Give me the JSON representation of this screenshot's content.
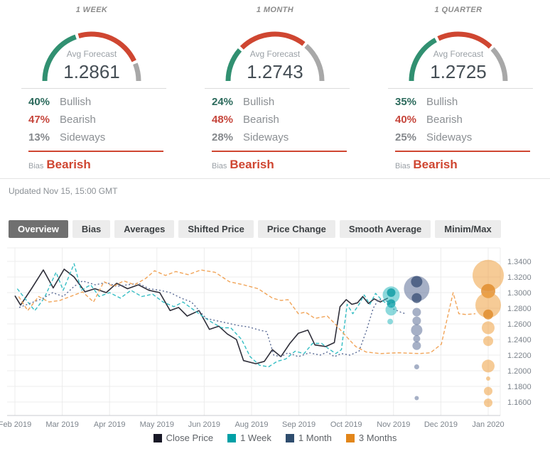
{
  "colors": {
    "bullish": "#319071",
    "bearish": "#cf4631",
    "sideways": "#a8a8a8",
    "grid": "#ececec",
    "axis": "#c8cbd0",
    "axis_text": "#7d848c"
  },
  "panels": [
    {
      "title": "1 WEEK",
      "avg_forecast_label": "Avg Forecast",
      "avg_forecast_value": "1.2861",
      "gauge": {
        "bullish": 40,
        "bearish": 47,
        "sideways": 13
      },
      "rows": [
        {
          "value": "40%",
          "label": "Bullish"
        },
        {
          "value": "47%",
          "label": "Bearish"
        },
        {
          "value": "13%",
          "label": "Sideways"
        }
      ],
      "bias_label": "Bias",
      "bias_value": "Bearish"
    },
    {
      "title": "1 MONTH",
      "avg_forecast_label": "Avg Forecast",
      "avg_forecast_value": "1.2743",
      "gauge": {
        "bullish": 24,
        "bearish": 48,
        "sideways": 28
      },
      "rows": [
        {
          "value": "24%",
          "label": "Bullish"
        },
        {
          "value": "48%",
          "label": "Bearish"
        },
        {
          "value": "28%",
          "label": "Sideways"
        }
      ],
      "bias_label": "Bias",
      "bias_value": "Bearish"
    },
    {
      "title": "1 QUARTER",
      "avg_forecast_label": "Avg Forecast",
      "avg_forecast_value": "1.2725",
      "gauge": {
        "bullish": 35,
        "bearish": 40,
        "sideways": 25
      },
      "rows": [
        {
          "value": "35%",
          "label": "Bullish"
        },
        {
          "value": "40%",
          "label": "Bearish"
        },
        {
          "value": "25%",
          "label": "Sideways"
        }
      ],
      "bias_label": "Bias",
      "bias_value": "Bearish"
    }
  ],
  "updated": "Updated Nov 15, 15:00 GMT",
  "tabs": [
    {
      "label": "Overview",
      "active": true
    },
    {
      "label": "Bias",
      "active": false
    },
    {
      "label": "Averages",
      "active": false
    },
    {
      "label": "Shifted Price",
      "active": false
    },
    {
      "label": "Price Change",
      "active": false
    },
    {
      "label": "Smooth Average",
      "active": false
    },
    {
      "label": "Minim/Max",
      "active": false
    }
  ],
  "chart_data": {
    "type": "line",
    "x_axis": {
      "labels": [
        "Feb 2019",
        "Mar 2019",
        "Apr 2019",
        "May 2019",
        "Jun 2019",
        "Aug 2019",
        "Sep 2019",
        "Oct 2019",
        "Nov 2019",
        "Dec 2019",
        "Jan 2020"
      ]
    },
    "y_axis": {
      "labels": [
        "1.3400",
        "1.3200",
        "1.3000",
        "1.2800",
        "1.2600",
        "1.2400",
        "1.2200",
        "1.2000",
        "1.1800",
        "1.1600"
      ],
      "min": 1.16,
      "max": 1.34,
      "step": 0.02
    },
    "grid": true,
    "legend_position": "bottom",
    "series": [
      {
        "name": "Close Price",
        "color": "#2f2f3a",
        "dash": "",
        "width": 1.6,
        "bubble_light": "#2f2f3a",
        "bubble_dark": "#2f2f3a",
        "points": [
          [
            0,
            1.296
          ],
          [
            0.12,
            1.284
          ],
          [
            0.35,
            1.305
          ],
          [
            0.6,
            1.329
          ],
          [
            0.81,
            1.306
          ],
          [
            1.04,
            1.33
          ],
          [
            1.25,
            1.32
          ],
          [
            1.48,
            1.301
          ],
          [
            1.69,
            1.305
          ],
          [
            1.93,
            1.3
          ],
          [
            2.15,
            1.312
          ],
          [
            2.38,
            1.305
          ],
          [
            2.61,
            1.31
          ],
          [
            2.83,
            1.303
          ],
          [
            3.06,
            1.3
          ],
          [
            3.28,
            1.277
          ],
          [
            3.46,
            1.281
          ],
          [
            3.64,
            1.27
          ],
          [
            3.89,
            1.277
          ],
          [
            4.11,
            1.253
          ],
          [
            4.31,
            1.257
          ],
          [
            4.49,
            1.247
          ],
          [
            4.68,
            1.24
          ],
          [
            4.83,
            1.213
          ],
          [
            5.09,
            1.209
          ],
          [
            5.27,
            1.212
          ],
          [
            5.44,
            1.227
          ],
          [
            5.62,
            1.218
          ],
          [
            5.81,
            1.235
          ],
          [
            5.99,
            1.248
          ],
          [
            6.19,
            1.252
          ],
          [
            6.34,
            1.233
          ],
          [
            6.57,
            1.231
          ],
          [
            6.75,
            1.236
          ],
          [
            6.87,
            1.282
          ],
          [
            7,
            1.291
          ],
          [
            7.12,
            1.285
          ],
          [
            7.24,
            1.287
          ],
          [
            7.35,
            1.295
          ],
          [
            7.47,
            1.286
          ],
          [
            7.59,
            1.292
          ],
          [
            7.72,
            1.288
          ],
          [
            7.88,
            1.293
          ]
        ]
      },
      {
        "name": "1 Week",
        "color": "#35bec4",
        "dash": "5 3",
        "width": 1.4,
        "bubble_light": "#2fb9bf",
        "bubble_dark": "#0d9aa2",
        "points": [
          [
            0.05,
            1.305
          ],
          [
            0.27,
            1.288
          ],
          [
            0.42,
            1.277
          ],
          [
            0.62,
            1.293
          ],
          [
            0.87,
            1.326
          ],
          [
            1.02,
            1.303
          ],
          [
            1.25,
            1.337
          ],
          [
            1.4,
            1.303
          ],
          [
            1.6,
            1.31
          ],
          [
            1.78,
            1.295
          ],
          [
            2,
            1.3
          ],
          [
            2.23,
            1.293
          ],
          [
            2.45,
            1.303
          ],
          [
            2.68,
            1.295
          ],
          [
            2.91,
            1.298
          ],
          [
            3.13,
            1.288
          ],
          [
            3.36,
            1.282
          ],
          [
            3.55,
            1.288
          ],
          [
            3.73,
            1.28
          ],
          [
            3.96,
            1.27
          ],
          [
            4.16,
            1.262
          ],
          [
            4.37,
            1.255
          ],
          [
            4.56,
            1.255
          ],
          [
            4.79,
            1.24
          ],
          [
            4.97,
            1.218
          ],
          [
            5.17,
            1.207
          ],
          [
            5.36,
            1.205
          ],
          [
            5.54,
            1.212
          ],
          [
            5.72,
            1.215
          ],
          [
            5.92,
            1.225
          ],
          [
            6.11,
            1.222
          ],
          [
            6.29,
            1.235
          ],
          [
            6.48,
            1.235
          ],
          [
            6.63,
            1.228
          ],
          [
            6.78,
            1.222
          ],
          [
            6.9,
            1.227
          ],
          [
            7.02,
            1.285
          ],
          [
            7.14,
            1.273
          ],
          [
            7.27,
            1.285
          ],
          [
            7.38,
            1.297
          ],
          [
            7.5,
            1.285
          ],
          [
            7.62,
            1.299
          ],
          [
            7.76,
            1.29
          ],
          [
            7.88,
            1.285
          ],
          [
            8,
            1.288
          ]
        ]
      },
      {
        "name": "1 Month",
        "color": "#5a6b95",
        "dash": "2 3",
        "width": 1.4,
        "bubble_light": "#5d7097",
        "bubble_dark": "#3d5278",
        "points": [
          [
            0.09,
            1.281
          ],
          [
            0.35,
            1.287
          ],
          [
            0.57,
            1.292
          ],
          [
            0.8,
            1.3
          ],
          [
            1.02,
            1.295
          ],
          [
            1.25,
            1.308
          ],
          [
            1.43,
            1.315
          ],
          [
            1.7,
            1.31
          ],
          [
            1.93,
            1.313
          ],
          [
            2.15,
            1.308
          ],
          [
            2.38,
            1.31
          ],
          [
            2.61,
            1.312
          ],
          [
            2.83,
            1.305
          ],
          [
            3.06,
            1.303
          ],
          [
            3.28,
            1.3
          ],
          [
            3.51,
            1.293
          ],
          [
            3.73,
            1.288
          ],
          [
            4.04,
            1.267
          ],
          [
            4.26,
            1.264
          ],
          [
            4.49,
            1.261
          ],
          [
            4.71,
            1.258
          ],
          [
            4.94,
            1.256
          ],
          [
            5.17,
            1.252
          ],
          [
            5.32,
            1.25
          ],
          [
            5.47,
            1.22
          ],
          [
            5.62,
            1.218
          ],
          [
            5.77,
            1.223
          ],
          [
            5.99,
            1.218
          ],
          [
            6.22,
            1.223
          ],
          [
            6.45,
            1.22
          ],
          [
            6.6,
            1.224
          ],
          [
            6.75,
            1.218
          ],
          [
            6.9,
            1.222
          ],
          [
            7.08,
            1.22
          ],
          [
            7.27,
            1.225
          ],
          [
            7.42,
            1.25
          ],
          [
            7.57,
            1.28
          ],
          [
            7.68,
            1.291
          ],
          [
            7.85,
            1.29
          ],
          [
            8,
            1.279
          ],
          [
            8.15,
            1.275
          ],
          [
            8.25,
            1.273
          ]
        ]
      },
      {
        "name": "3 Months",
        "color": "#f1a458",
        "dash": "5 3",
        "width": 1.4,
        "bubble_light": "#efa03f",
        "bubble_dark": "#e08a28",
        "points": [
          [
            0.08,
            1.295
          ],
          [
            0.27,
            1.277
          ],
          [
            0.5,
            1.295
          ],
          [
            0.72,
            1.288
          ],
          [
            0.95,
            1.29
          ],
          [
            1.17,
            1.295
          ],
          [
            1.43,
            1.301
          ],
          [
            1.66,
            1.288
          ],
          [
            1.88,
            1.314
          ],
          [
            2.08,
            1.308
          ],
          [
            2.3,
            1.315
          ],
          [
            2.53,
            1.31
          ],
          [
            2.76,
            1.318
          ],
          [
            2.95,
            1.328
          ],
          [
            3.18,
            1.322
          ],
          [
            3.4,
            1.327
          ],
          [
            3.66,
            1.323
          ],
          [
            3.93,
            1.329
          ],
          [
            4.23,
            1.326
          ],
          [
            4.53,
            1.314
          ],
          [
            4.83,
            1.31
          ],
          [
            5.14,
            1.305
          ],
          [
            5.44,
            1.293
          ],
          [
            5.62,
            1.29
          ],
          [
            5.77,
            1.291
          ],
          [
            5.99,
            1.273
          ],
          [
            6.14,
            1.275
          ],
          [
            6.34,
            1.267
          ],
          [
            6.6,
            1.27
          ],
          [
            6.75,
            1.261
          ],
          [
            6.97,
            1.246
          ],
          [
            7.2,
            1.231
          ],
          [
            7.42,
            1.224
          ],
          [
            7.72,
            1.222
          ],
          [
            8.1,
            1.223
          ],
          [
            8.55,
            1.222
          ],
          [
            8.78,
            1.223
          ],
          [
            9.01,
            1.234
          ],
          [
            9.26,
            1.3
          ],
          [
            9.38,
            1.273
          ],
          [
            9.53,
            1.272
          ],
          [
            9.73,
            1.273
          ]
        ]
      }
    ],
    "bubbles": [
      {
        "series": "1 Week",
        "t": 7.95,
        "value": 1.297,
        "r": 12,
        "tone": "light"
      },
      {
        "series": "1 Week",
        "t": 7.95,
        "value": 1.3,
        "r": 6,
        "tone": "dark"
      },
      {
        "series": "1 Week",
        "t": 7.95,
        "value": 1.286,
        "r": 6,
        "tone": "dark"
      },
      {
        "series": "1 Week",
        "t": 7.95,
        "value": 1.278,
        "r": 8,
        "tone": "light"
      },
      {
        "series": "1 Week",
        "t": 7.93,
        "value": 1.263,
        "r": 4,
        "tone": "light"
      },
      {
        "series": "1 Month",
        "t": 8.49,
        "value": 1.305,
        "r": 18,
        "tone": "light"
      },
      {
        "series": "1 Month",
        "t": 8.49,
        "value": 1.314,
        "r": 8,
        "tone": "dark"
      },
      {
        "series": "1 Month",
        "t": 8.49,
        "value": 1.293,
        "r": 7,
        "tone": "dark"
      },
      {
        "series": "1 Month",
        "t": 8.49,
        "value": 1.275,
        "r": 6,
        "tone": "light"
      },
      {
        "series": "1 Month",
        "t": 8.49,
        "value": 1.264,
        "r": 6,
        "tone": "light"
      },
      {
        "series": "1 Month",
        "t": 8.49,
        "value": 1.252,
        "r": 8,
        "tone": "light"
      },
      {
        "series": "1 Month",
        "t": 8.49,
        "value": 1.241,
        "r": 5,
        "tone": "light"
      },
      {
        "series": "1 Month",
        "t": 8.49,
        "value": 1.232,
        "r": 6,
        "tone": "light"
      },
      {
        "series": "1 Month",
        "t": 8.49,
        "value": 1.205,
        "r": 3.5,
        "tone": "light"
      },
      {
        "series": "1 Month",
        "t": 8.49,
        "value": 1.165,
        "r": 3,
        "tone": "light"
      },
      {
        "series": "3 Months",
        "t": 10,
        "value": 1.322,
        "r": 22,
        "tone": "light"
      },
      {
        "series": "3 Months",
        "t": 10,
        "value": 1.302,
        "r": 10,
        "tone": "dark"
      },
      {
        "series": "3 Months",
        "t": 10,
        "value": 1.284,
        "r": 18,
        "tone": "light"
      },
      {
        "series": "3 Months",
        "t": 10,
        "value": 1.272,
        "r": 7,
        "tone": "dark"
      },
      {
        "series": "3 Months",
        "t": 10,
        "value": 1.255,
        "r": 9,
        "tone": "light"
      },
      {
        "series": "3 Months",
        "t": 10,
        "value": 1.238,
        "r": 7,
        "tone": "light"
      },
      {
        "series": "3 Months",
        "t": 10,
        "value": 1.206,
        "r": 9,
        "tone": "light"
      },
      {
        "series": "3 Months",
        "t": 10,
        "value": 1.19,
        "r": 3,
        "tone": "light"
      },
      {
        "series": "3 Months",
        "t": 10,
        "value": 1.174,
        "r": 6,
        "tone": "light"
      },
      {
        "series": "3 Months",
        "t": 10,
        "value": 1.159,
        "r": 6,
        "tone": "light"
      }
    ],
    "legend": [
      {
        "label": "Close Price",
        "color": "#181826"
      },
      {
        "label": "1 Week",
        "color": "#00a0a6"
      },
      {
        "label": "1 Month",
        "color": "#2f4d6e"
      },
      {
        "label": "3 Months",
        "color": "#e2861a"
      }
    ]
  }
}
